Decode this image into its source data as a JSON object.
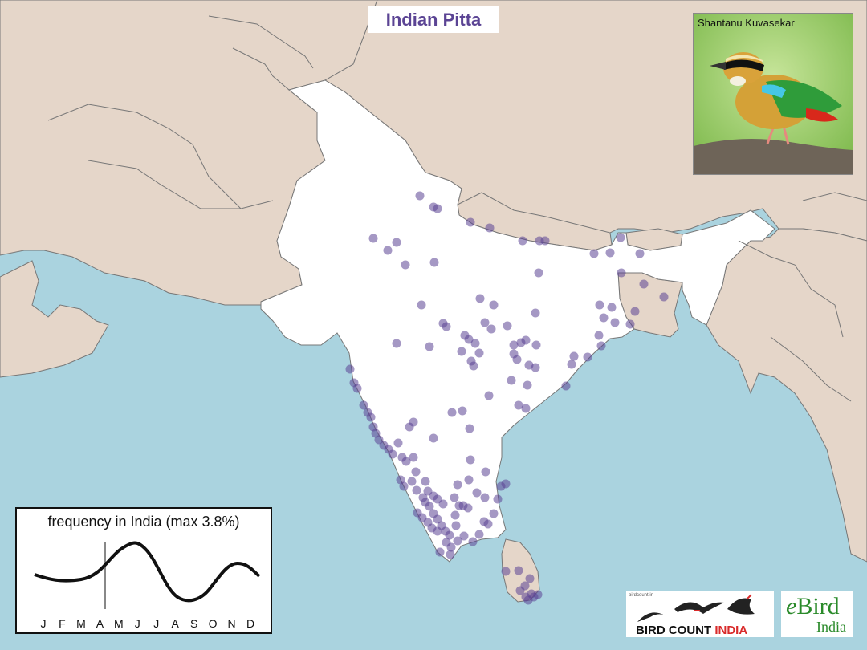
{
  "species_title": "Indian Pitta",
  "photo": {
    "credit": "Shantanu Kuvasekar"
  },
  "frequency_chart": {
    "title": "frequency in India (max 3.8%)",
    "months": [
      "J",
      "F",
      "M",
      "A",
      "M",
      "J",
      "J",
      "A",
      "S",
      "O",
      "N",
      "D"
    ],
    "current_month_marker": 4
  },
  "colors": {
    "sea": "#aad3df",
    "land": "#e5d6c9",
    "india": "#ffffff",
    "sighting_dot": "#5b4494",
    "title_text": "#5b4494"
  },
  "logos": {
    "bird_count_india": {
      "small_text": "birdcount.in",
      "text_black": "BIRD COUNT ",
      "text_red": "INDIA"
    },
    "ebird": {
      "main": "Bird",
      "main_prefix": "e",
      "sub": "India"
    }
  }
}
